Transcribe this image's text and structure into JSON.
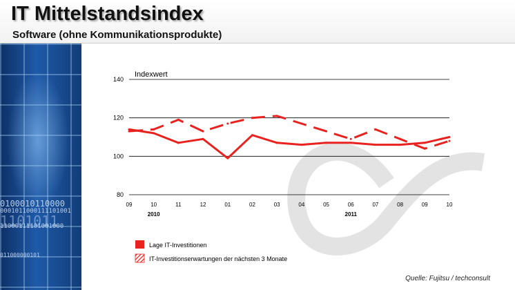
{
  "header": {
    "title": "IT Mittelstandsindex",
    "subtitle": "Software (ohne Kommunikationsprodukte)"
  },
  "sidebar": {
    "binary_lines": [
      "0100010110000",
      "0001011000111101001",
      "1101011",
      "11000111101001000",
      "011000000101"
    ]
  },
  "colors": {
    "series": "#e8231f",
    "grid": "#000000",
    "accent": "#1f5aa8"
  },
  "chart_data": {
    "type": "line",
    "title": "Indexwert",
    "xlabel": "",
    "ylabel": "Indexwert",
    "ylim": [
      80,
      140
    ],
    "yticks": [
      80,
      100,
      120,
      140
    ],
    "categories": [
      "09",
      "10",
      "11",
      "12",
      "01",
      "02",
      "03",
      "04",
      "05",
      "06",
      "07",
      "08",
      "09",
      "10"
    ],
    "year_labels": [
      {
        "label": "2010",
        "index": 1
      },
      {
        "label": "2011",
        "index": 9
      }
    ],
    "series": [
      {
        "name": "Lage IT-Investitionen",
        "style": "solid",
        "values": [
          114,
          112,
          107,
          109,
          99,
          111,
          107,
          106,
          107,
          107,
          106,
          106,
          107,
          110
        ]
      },
      {
        "name": "IT-Investitionserwartungen  der nächsten 3 Monate",
        "style": "dashed",
        "values": [
          113,
          114,
          119,
          113,
          117,
          120,
          121,
          117,
          113,
          109,
          114,
          109,
          104,
          108
        ]
      }
    ],
    "legend_position": "bottom-left",
    "grid": true
  },
  "source": "Quelle: Fujitsu / techconsult"
}
